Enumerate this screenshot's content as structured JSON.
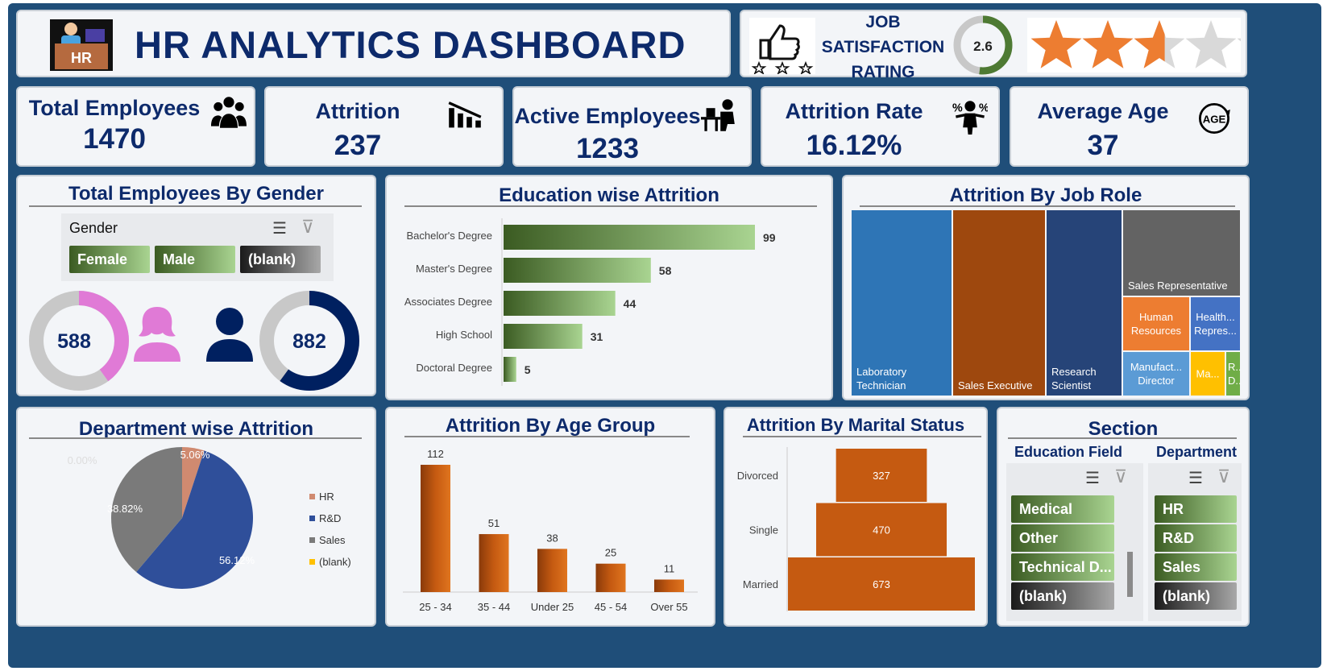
{
  "header": {
    "title": "HR ANALYTICS DASHBOARD",
    "logo_text": "HR"
  },
  "job_satisfaction": {
    "label_line1": "JOB",
    "label_line2": "SATISFACTION",
    "label_line3": "RATING",
    "rating": "2.6",
    "rating_value": 2.6,
    "max": 5
  },
  "kpis": [
    {
      "label": "Total Employees",
      "value": "1470",
      "icon": "people-group-icon"
    },
    {
      "label": "Attrition",
      "value": "237",
      "icon": "attrition-bars-icon"
    },
    {
      "label": "Active Employees",
      "value": "1233",
      "icon": "worker-at-desk-icon"
    },
    {
      "label": "Attrition Rate",
      "value": "16.12%",
      "icon": "percent-person-icon"
    },
    {
      "label": "Average Age",
      "value": "37",
      "icon": "age-icon"
    }
  ],
  "gender": {
    "title": "Total Employees By Gender",
    "slicer_title": "Gender",
    "options": [
      "Female",
      "Male",
      "(blank)"
    ],
    "female": "588",
    "male": "882",
    "female_share": 0.4,
    "male_share": 0.6
  },
  "dept_chart_title": "Department wise Attrition",
  "age_chart_title": "Attrition By Age Group",
  "marital_chart_title": "Attrition By Marital Status",
  "edu_chart_title": "Education wise Attrition",
  "jobrole_chart_title": "Attrition By Job Role",
  "section": {
    "title": "Section",
    "edu_field_title": "Education Field",
    "edu_fields": [
      "Medical",
      "Other",
      "Technical D...",
      "(blank)"
    ],
    "dept_title": "Department",
    "departments": [
      "HR",
      "R&D",
      "Sales",
      "(blank)"
    ]
  },
  "colors": {
    "navy": "#0d2a6b",
    "female": "#e07ad6",
    "male": "#002060",
    "bar_orange": "#c55a11",
    "green_dark": "#3b5b22",
    "green_light": "#a9d491"
  },
  "chart_data": [
    {
      "type": "bar",
      "orientation": "horizontal",
      "title": "Education wise Attrition",
      "categories": [
        "Bachelor's Degree",
        "Master's Degree",
        "Associates Degree",
        "High School",
        "Doctoral Degree"
      ],
      "values": [
        99,
        58,
        44,
        31,
        5
      ]
    },
    {
      "type": "treemap",
      "title": "Attrition By Job Role",
      "labels": [
        "Laboratory Technician",
        "Sales Executive",
        "Research Scientist",
        "Sales Representative",
        "Human Resources",
        "Health... Repres...",
        "Manufact... Director",
        "Ma...",
        "R... D..."
      ]
    },
    {
      "type": "pie",
      "title": "Department wise Attrition",
      "categories": [
        "HR",
        "R&D",
        "Sales",
        "(blank)"
      ],
      "values": [
        5.06,
        56.12,
        38.82,
        0.0
      ],
      "labels": [
        "5.06%",
        "56.12%",
        "38.82%",
        "0.00%"
      ],
      "colors": [
        "#d08a70",
        "#2f4f9a",
        "#7a7a7a",
        "#ffc000"
      ],
      "legend": "right"
    },
    {
      "type": "bar",
      "title": "Attrition By Age Group",
      "categories": [
        "25 - 34",
        "35 - 44",
        "Under 25",
        "45 - 54",
        "Over 55"
      ],
      "values": [
        112,
        51,
        38,
        25,
        11
      ]
    },
    {
      "type": "bar",
      "orientation": "horizontal",
      "subtype": "funnel",
      "title": "Attrition By Marital Status",
      "categories": [
        "Divorced",
        "Single",
        "Married"
      ],
      "values": [
        327,
        470,
        673
      ]
    }
  ]
}
